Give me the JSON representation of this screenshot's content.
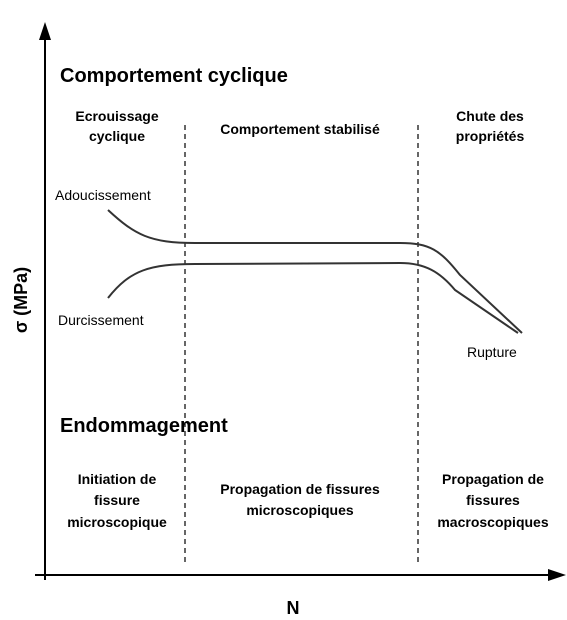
{
  "header": {
    "title": "Comportement cyclique"
  },
  "phases": [
    {
      "lines": [
        "Ecrouissage",
        "cyclique"
      ]
    },
    {
      "lines": [
        "Comportement stabilisé"
      ]
    },
    {
      "lines": [
        "Chute des",
        "propriétés"
      ]
    }
  ],
  "curves": {
    "upper": "Adoucissement",
    "lower": "Durcissement",
    "end": "Rupture"
  },
  "damage": {
    "title": "Endommagement",
    "stages": [
      {
        "lines": [
          "Initiation de",
          "fissure",
          "microscopique"
        ]
      },
      {
        "lines": [
          "Propagation de fissures",
          "microscopiques"
        ]
      },
      {
        "lines": [
          "Propagation de",
          "fissures",
          "macroscopiques"
        ]
      }
    ]
  },
  "axes": {
    "x": "N",
    "y": "σ (MPa)"
  }
}
